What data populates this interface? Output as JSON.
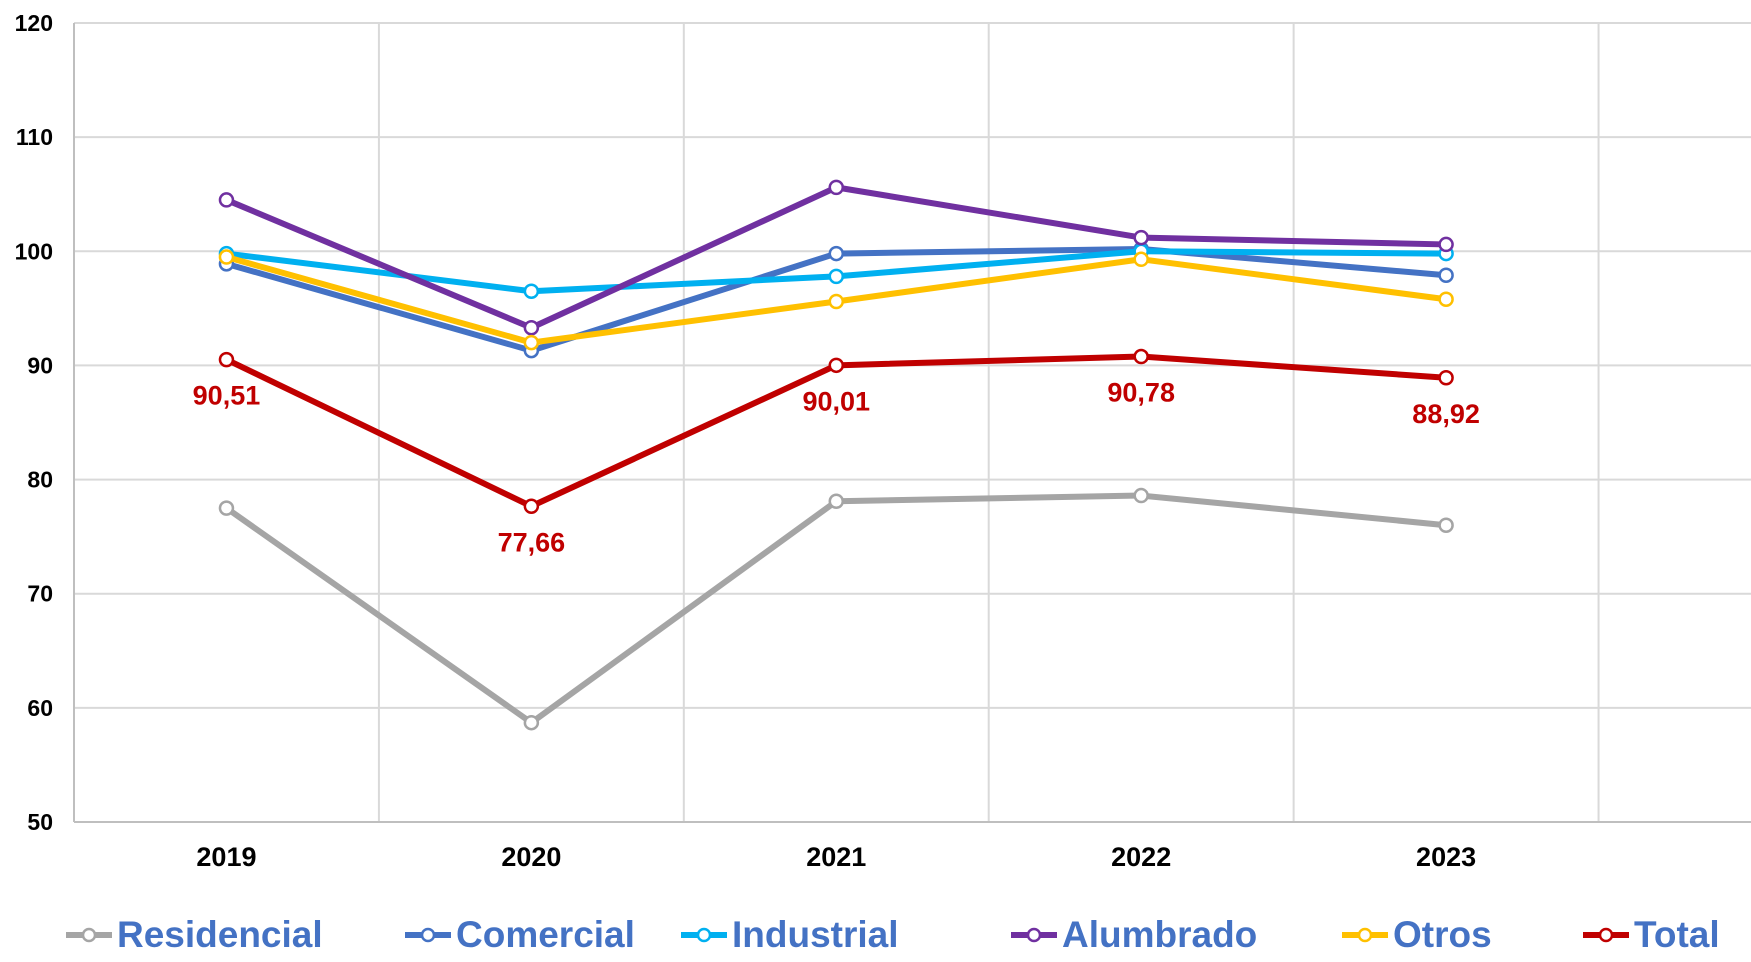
{
  "chart_data": {
    "type": "line",
    "categories": [
      "2019",
      "2020",
      "2021",
      "2022",
      "2023"
    ],
    "ylim": [
      50,
      120
    ],
    "yticks": [
      50,
      60,
      70,
      80,
      90,
      100,
      110,
      120
    ],
    "grid": true,
    "legend_position": "bottom",
    "legend_text_color": "#4472C4",
    "series": [
      {
        "name": "Residencial",
        "color": "#A5A5A5",
        "values": [
          77.5,
          58.7,
          78.1,
          78.6,
          76.0
        ]
      },
      {
        "name": "Comercial",
        "color": "#4472C4",
        "values": [
          98.9,
          91.3,
          99.8,
          100.2,
          97.9
        ]
      },
      {
        "name": "Industrial",
        "color": "#00B0F0",
        "values": [
          99.8,
          96.5,
          97.8,
          100.0,
          99.8
        ]
      },
      {
        "name": "Alumbrado",
        "color": "#7030A0",
        "values": [
          104.5,
          93.3,
          105.6,
          101.2,
          100.6
        ]
      },
      {
        "name": "Otros",
        "color": "#FFC000",
        "values": [
          99.5,
          92.0,
          95.6,
          99.3,
          95.8
        ]
      },
      {
        "name": "Total",
        "color": "#C00000",
        "values": [
          90.51,
          77.66,
          90.01,
          90.78,
          88.92
        ],
        "data_labels": [
          "90,51",
          "77,66",
          "90,01",
          "90,78",
          "88,92"
        ]
      }
    ]
  }
}
